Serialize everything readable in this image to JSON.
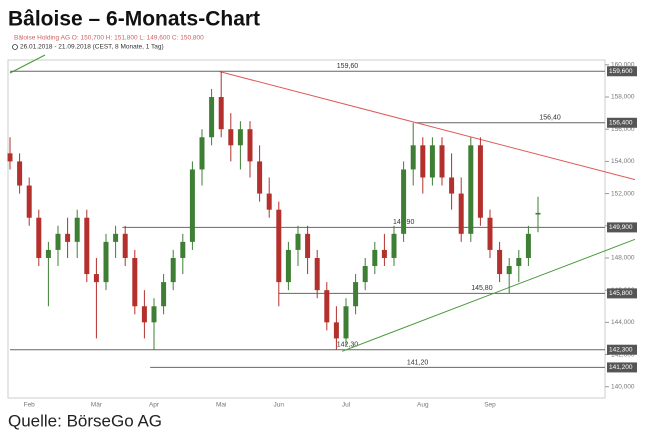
{
  "chart_data": {
    "type": "candlestick",
    "title": "Bâloise – 6-Monats-Chart",
    "legend_text": "Bâloise Holding AG O: 150,700 H: 151,800 L: 149,600 C: 150,800",
    "period_text": "26.01.2018 - 21.09.2018 (CEST, 8 Monate, 1 Tag)",
    "source": "Quelle: BörseGo AG",
    "categories": [
      null,
      null,
      "Feb",
      null,
      null,
      null,
      null,
      null,
      null,
      "Mär",
      null,
      null,
      null,
      null,
      null,
      "Apr",
      null,
      null,
      null,
      null,
      null,
      null,
      "Mai",
      null,
      null,
      null,
      null,
      null,
      "Jun",
      null,
      null,
      null,
      null,
      null,
      null,
      "Jul",
      null,
      null,
      null,
      null,
      null,
      null,
      null,
      "Aug",
      null,
      null,
      null,
      null,
      null,
      null,
      "Sep",
      null,
      null,
      null,
      null,
      null
    ],
    "up_color": "#3f7f35",
    "down_color": "#b3302c",
    "open": [
      154.5,
      154,
      152.5,
      150.5,
      148,
      148.5,
      149.5,
      149,
      150.5,
      147,
      146.5,
      149,
      149.5,
      148,
      145,
      144,
      145,
      146.5,
      148,
      149,
      153.5,
      155.5,
      158,
      156,
      155,
      156,
      154,
      152,
      151,
      146.5,
      148.5,
      149.5,
      148,
      146,
      144,
      143,
      145,
      146.5,
      147.5,
      148.5,
      148,
      149.5,
      153.5,
      155,
      153,
      155,
      153,
      152,
      149.5,
      155,
      150.5,
      148.5,
      147,
      147.5,
      148,
      150.7
    ],
    "high": [
      155.5,
      154.5,
      153,
      151,
      149,
      150,
      150.5,
      151,
      151,
      148,
      149.5,
      150,
      150,
      148.5,
      146,
      145.5,
      147,
      148.5,
      149.5,
      154,
      156,
      158.5,
      159.6,
      157,
      156.5,
      156.5,
      155,
      153,
      151.5,
      149,
      150,
      150,
      148.5,
      146.5,
      145,
      145.5,
      147,
      148,
      149,
      149.5,
      150,
      154,
      156.4,
      155.5,
      155.5,
      155.5,
      154.5,
      153,
      155.5,
      155.5,
      151,
      149,
      148,
      148.5,
      150,
      151.8
    ],
    "low": [
      153.5,
      152,
      150,
      147.5,
      145,
      147.5,
      148,
      148,
      146.5,
      143,
      146,
      148,
      147.5,
      144.5,
      143,
      142.3,
      144.5,
      146,
      147,
      148.5,
      152.5,
      155,
      155.5,
      154,
      153.5,
      153,
      151.5,
      150.5,
      145,
      146,
      147.5,
      147,
      145.5,
      143.5,
      142.3,
      142.5,
      144.5,
      146,
      147,
      147.5,
      147.5,
      149,
      152.5,
      152,
      152.5,
      152.5,
      151,
      149,
      149,
      150,
      148,
      146.5,
      145.8,
      146.5,
      147.5,
      149.6
    ],
    "close": [
      154,
      152.5,
      150.5,
      148,
      148.5,
      149.5,
      149,
      150.5,
      147,
      146.5,
      149,
      149.5,
      148,
      145,
      144,
      145,
      146.5,
      148,
      149,
      153.5,
      155.5,
      158,
      156,
      155,
      156,
      154,
      152,
      151,
      146.5,
      148.5,
      149.5,
      148,
      146,
      144,
      143,
      145,
      146.5,
      147.5,
      148.5,
      148,
      149.5,
      153.5,
      155,
      153,
      155,
      153,
      152,
      149.5,
      155,
      150.5,
      148.5,
      147,
      147.5,
      148,
      149.5,
      150.8
    ],
    "ylim": [
      139.3,
      160.3
    ],
    "yticks": [
      {
        "value": 140,
        "label": "140,000"
      },
      {
        "value": 142,
        "label": "142,000"
      },
      {
        "value": 144,
        "label": "144,000"
      },
      {
        "value": 146,
        "label": "146,000"
      },
      {
        "value": 148,
        "label": "148,000"
      },
      {
        "value": 150,
        "label": "150,000"
      },
      {
        "value": 152,
        "label": "152,000"
      },
      {
        "value": 154,
        "label": "154,000"
      },
      {
        "value": 156,
        "label": "156,000"
      },
      {
        "value": 158,
        "label": "158,000"
      },
      {
        "value": 160,
        "label": "160,000"
      }
    ],
    "levels": [
      {
        "value": 159.6,
        "label": "159,60",
        "tag": "159,600",
        "from": 0
      },
      {
        "value": 156.4,
        "label": "156,40",
        "tag": "156,400",
        "from": 42.2
      },
      {
        "value": 149.9,
        "label": "149,90",
        "tag": "149,900",
        "from": 11.7
      },
      {
        "value": 145.8,
        "label": "145,80",
        "tag": "145,800",
        "from": 28
      },
      {
        "value": 142.3,
        "label": "142,30",
        "tag": "142,300",
        "from": 0
      },
      {
        "value": 141.2,
        "label": "141,20",
        "tag": "141,200",
        "from": 14.6
      }
    ],
    "trendlines": [
      {
        "color": "#e05a5a",
        "from": [
          21.7,
          159.6
        ],
        "to": [
          62,
          153.35
        ]
      },
      {
        "color": "#4c9a3c",
        "from": [
          34.6,
          142.2
        ],
        "to": [
          62,
          148.45
        ]
      }
    ]
  }
}
